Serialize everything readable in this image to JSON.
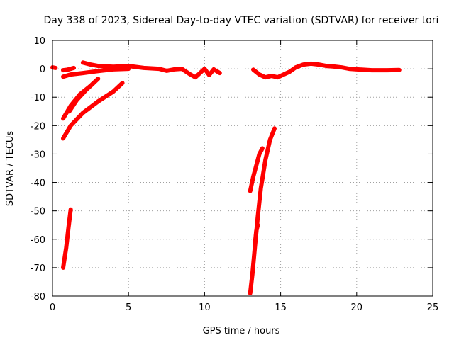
{
  "chart_data": {
    "type": "scatter",
    "title": "Day 338 of 2023, Sidereal Day-to-day VTEC variation (SDTVAR) for receiver tori",
    "xlabel": "GPS time / hours",
    "ylabel": "SDTVAR / TECUs",
    "xlim": [
      0,
      25
    ],
    "ylim": [
      -80,
      10
    ],
    "x_ticks": [
      0,
      5,
      10,
      15,
      20,
      25
    ],
    "y_ticks": [
      10,
      0,
      -10,
      -20,
      -30,
      -40,
      -50,
      -60,
      -70,
      -80
    ],
    "grid": true,
    "legend": "none",
    "marker": "plus",
    "color": "#ff0000",
    "series": [
      {
        "points": [
          [
            0,
            0.5
          ],
          [
            0.2,
            0.3
          ]
        ]
      },
      {
        "points": [
          [
            0.7,
            -0.5
          ],
          [
            1.0,
            -0.3
          ],
          [
            1.4,
            0.3
          ]
        ]
      },
      {
        "points": [
          [
            0.7,
            -2.8
          ],
          [
            1.2,
            -2.0
          ],
          [
            2.0,
            -1.5
          ],
          [
            3.0,
            -0.8
          ],
          [
            4.0,
            -0.2
          ],
          [
            5.0,
            0.0
          ]
        ]
      },
      {
        "points": [
          [
            2.0,
            2.2
          ],
          [
            2.5,
            1.5
          ],
          [
            3.0,
            1.0
          ],
          [
            4.0,
            0.7
          ],
          [
            5.0,
            1.0
          ],
          [
            6.0,
            0.3
          ],
          [
            7.0,
            0.0
          ],
          [
            7.5,
            -0.7
          ],
          [
            8.0,
            -0.2
          ],
          [
            8.5,
            0.0
          ],
          [
            9.0,
            -1.8
          ],
          [
            9.4,
            -3.0
          ],
          [
            9.8,
            -1.0
          ],
          [
            10.0,
            0.0
          ],
          [
            10.3,
            -2.2
          ],
          [
            10.6,
            -0.2
          ],
          [
            11.0,
            -1.5
          ]
        ]
      },
      {
        "points": [
          [
            0.7,
            -17.5
          ],
          [
            1.2,
            -13.0
          ],
          [
            1.8,
            -9.0
          ],
          [
            2.5,
            -6.0
          ],
          [
            3.0,
            -3.5
          ]
        ]
      },
      {
        "points": [
          [
            1.1,
            -15.0
          ],
          [
            1.6,
            -11.0
          ],
          [
            2.2,
            -7.5
          ],
          [
            2.7,
            -5.0
          ]
        ]
      },
      {
        "points": [
          [
            0.7,
            -24.5
          ],
          [
            1.2,
            -20.0
          ],
          [
            2.0,
            -15.5
          ],
          [
            3.0,
            -11.5
          ],
          [
            4.0,
            -8.0
          ],
          [
            4.6,
            -5.0
          ]
        ]
      },
      {
        "points": [
          [
            0.7,
            -70.0
          ],
          [
            0.9,
            -63.0
          ],
          [
            1.05,
            -56.0
          ],
          [
            1.2,
            -49.5
          ]
        ]
      },
      {
        "points": [
          [
            13.0,
            -79.0
          ],
          [
            13.15,
            -72.0
          ],
          [
            13.3,
            -63.0
          ],
          [
            13.5,
            -52.0
          ],
          [
            13.7,
            -42.0
          ],
          [
            14.0,
            -32.0
          ],
          [
            14.3,
            -25.0
          ],
          [
            14.6,
            -21.0
          ]
        ]
      },
      {
        "points": [
          [
            13.0,
            -43.0
          ],
          [
            13.2,
            -38.0
          ],
          [
            13.4,
            -34.0
          ],
          [
            13.6,
            -30.0
          ],
          [
            13.8,
            -28.0
          ]
        ]
      },
      {
        "points": [
          [
            13.3,
            -62.0
          ],
          [
            13.4,
            -57.0
          ],
          [
            13.5,
            -55.0
          ]
        ]
      },
      {
        "points": [
          [
            13.2,
            -0.3
          ],
          [
            13.6,
            -2.0
          ],
          [
            14.0,
            -3.0
          ],
          [
            14.4,
            -2.5
          ],
          [
            14.8,
            -3.0
          ],
          [
            15.2,
            -2.0
          ],
          [
            15.6,
            -1.0
          ],
          [
            16.0,
            0.5
          ],
          [
            16.5,
            1.5
          ],
          [
            17.0,
            1.8
          ],
          [
            17.5,
            1.5
          ],
          [
            18.0,
            1.0
          ],
          [
            18.5,
            0.8
          ],
          [
            19.0,
            0.5
          ],
          [
            19.5,
            0.0
          ],
          [
            20.0,
            -0.2
          ],
          [
            21.0,
            -0.5
          ],
          [
            22.0,
            -0.5
          ],
          [
            22.8,
            -0.4
          ]
        ]
      }
    ]
  }
}
